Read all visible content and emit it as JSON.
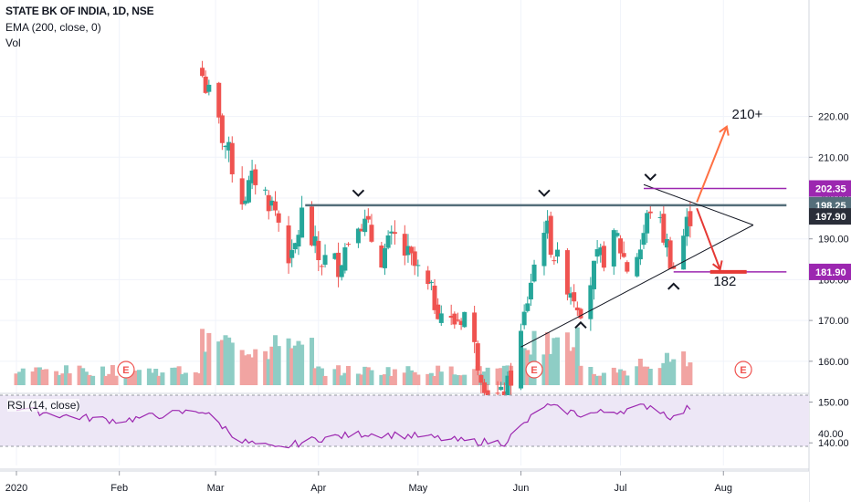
{
  "legend": {
    "title": "STATE BK OF INDIA, 1D, NSE",
    "ema": "EMA (200, close, 0)",
    "vol": "Vol",
    "rsi": "RSI (14, close)"
  },
  "price_ticks": [
    "220.00",
    "210.00",
    "200.00",
    "190.00",
    "180.00",
    "170.00",
    "160.00",
    "150.00",
    "140.00"
  ],
  "rsi_tick": "40.00",
  "time_ticks": [
    "2020",
    "Feb",
    "Mar",
    "Apr",
    "May",
    "Jun",
    "Jul",
    "Aug"
  ],
  "badges": [
    {
      "label": "202.35",
      "value": 202.35,
      "bg": "#9c27b0",
      "fg": "#ffffff"
    },
    {
      "label": "198.25",
      "value": 198.25,
      "bg": "#546e7a",
      "fg": "#ffffff"
    },
    {
      "label": "197.90",
      "value": 195.5,
      "bg": "#2a2e39",
      "fg": "#ffffff"
    },
    {
      "label": "181.90",
      "value": 181.9,
      "bg": "#9c27b0",
      "fg": "#ffffff"
    }
  ],
  "annotations": {
    "target_up": "210+",
    "target_down": "182"
  },
  "earnings_label": "E",
  "colors": {
    "up": "#26a69a",
    "down": "#ef5350",
    "vol_up": "#8ecdc5",
    "vol_down": "#f1a4a2",
    "resistance": "#546e7a",
    "purple": "#9c27b0",
    "arrow_up": "#ff7043",
    "arrow_down": "#e53935",
    "rsi_line": "#9c27b0",
    "rsi_band": "#ede7f6"
  },
  "chart_data": {
    "type": "candlestick",
    "symbol": "STATE BK OF INDIA",
    "interval": "1D",
    "exchange": "NSE",
    "price_range": [
      134,
      227
    ],
    "resistance": 198.25,
    "levels": [
      202.35,
      181.9
    ],
    "waypoints": [
      {
        "date": "2020-02-26",
        "price": 230
      },
      {
        "date": "2020-03-06",
        "price": 208
      },
      {
        "date": "2020-03-09",
        "price": 200
      },
      {
        "date": "2020-03-13",
        "price": 205
      },
      {
        "date": "2020-03-19",
        "price": 197
      },
      {
        "date": "2020-03-24",
        "price": 184
      },
      {
        "date": "2020-03-27",
        "price": 196
      },
      {
        "date": "2020-04-01",
        "price": 185
      },
      {
        "date": "2020-04-07",
        "price": 184
      },
      {
        "date": "2020-04-13",
        "price": 196
      },
      {
        "date": "2020-04-20",
        "price": 186
      },
      {
        "date": "2020-04-24",
        "price": 190
      },
      {
        "date": "2020-04-30",
        "price": 183
      },
      {
        "date": "2020-05-05",
        "price": 176
      },
      {
        "date": "2020-05-11",
        "price": 169
      },
      {
        "date": "2020-05-15",
        "price": 172
      },
      {
        "date": "2020-05-18",
        "price": 163
      },
      {
        "date": "2020-05-22",
        "price": 153
      },
      {
        "date": "2020-05-27",
        "price": 150
      },
      {
        "date": "2020-06-01",
        "price": 166
      },
      {
        "date": "2020-06-04",
        "price": 180
      },
      {
        "date": "2020-06-08",
        "price": 194
      },
      {
        "date": "2020-06-12",
        "price": 184
      },
      {
        "date": "2020-06-16",
        "price": 178
      },
      {
        "date": "2020-06-19",
        "price": 174
      },
      {
        "date": "2020-06-24",
        "price": 184
      },
      {
        "date": "2020-06-30",
        "price": 190
      },
      {
        "date": "2020-07-03",
        "price": 183
      },
      {
        "date": "2020-07-07",
        "price": 188
      },
      {
        "date": "2020-07-10",
        "price": 198
      },
      {
        "date": "2020-07-14",
        "price": 191
      },
      {
        "date": "2020-07-17",
        "price": 183
      },
      {
        "date": "2020-07-22",
        "price": 196
      }
    ],
    "rsi_waypoints": [
      {
        "date": "2020-01-01",
        "rsi": 60
      },
      {
        "date": "2020-01-15",
        "rsi": 54
      },
      {
        "date": "2020-02-01",
        "rsi": 50
      },
      {
        "date": "2020-02-15",
        "rsi": 55
      },
      {
        "date": "2020-02-26",
        "rsi": 58
      },
      {
        "date": "2020-03-09",
        "rsi": 34
      },
      {
        "date": "2020-03-19",
        "rsi": 28
      },
      {
        "date": "2020-04-01",
        "rsi": 36
      },
      {
        "date": "2020-04-15",
        "rsi": 40
      },
      {
        "date": "2020-05-01",
        "rsi": 38
      },
      {
        "date": "2020-05-15",
        "rsi": 34
      },
      {
        "date": "2020-05-27",
        "rsi": 33
      },
      {
        "date": "2020-06-08",
        "rsi": 62
      },
      {
        "date": "2020-06-19",
        "rsi": 55
      },
      {
        "date": "2020-07-01",
        "rsi": 58
      },
      {
        "date": "2020-07-10",
        "rsi": 62
      },
      {
        "date": "2020-07-17",
        "rsi": 52
      },
      {
        "date": "2020-07-22",
        "rsi": 61
      }
    ],
    "earnings_dates": [
      "2020-02-03",
      "2020-06-05",
      "2020-08-07"
    ],
    "trendlines": {
      "lower": [
        {
          "date": "2020-06-01",
          "price": 163.5
        },
        {
          "date": "2020-08-10",
          "price": 193.4
        }
      ],
      "upper": [
        {
          "date": "2020-07-08",
          "price": 203.3
        },
        {
          "date": "2020-08-10",
          "price": 193.4
        }
      ],
      "resistance": [
        {
          "date": "2020-03-28",
          "price": 198.25
        },
        {
          "date": "2020-08-20",
          "price": 198.25
        }
      ]
    }
  }
}
